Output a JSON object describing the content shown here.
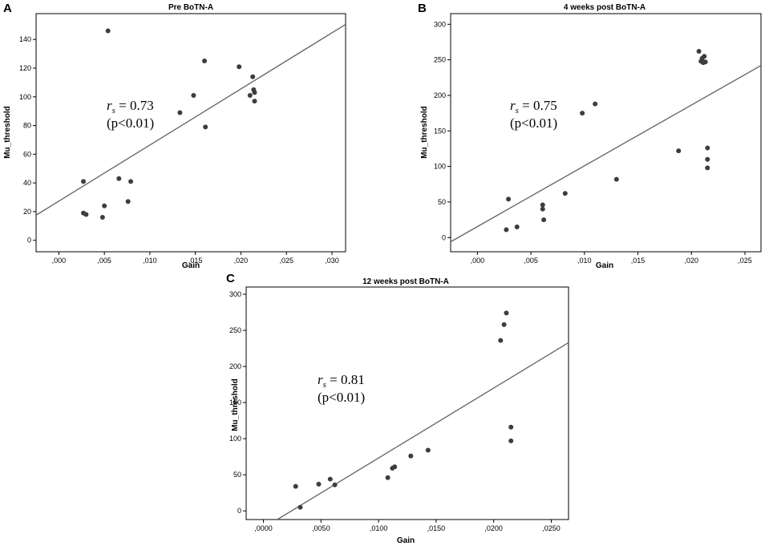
{
  "chart_data": [
    {
      "type": "scatter",
      "panel_label": "A",
      "title": "Pre BoTN-A",
      "xlabel": "Gain",
      "ylabel": "Mu_threshold",
      "xlim": [
        -0.0025,
        0.0315
      ],
      "ylim": [
        -8,
        158
      ],
      "xticks": [
        0,
        0.005,
        0.01,
        0.015,
        0.02,
        0.025,
        0.03
      ],
      "xtick_labels": [
        ",000",
        ",005",
        ",010",
        ",015",
        ",020",
        ",025",
        ",030"
      ],
      "yticks": [
        0,
        20,
        40,
        60,
        80,
        100,
        120,
        140
      ],
      "ytick_labels": [
        "0",
        "20",
        "40",
        "60",
        "80",
        "100",
        "120",
        "140"
      ],
      "points": [
        [
          0.0027,
          41
        ],
        [
          0.0027,
          19
        ],
        [
          0.003,
          18
        ],
        [
          0.0048,
          16
        ],
        [
          0.005,
          24
        ],
        [
          0.0054,
          146
        ],
        [
          0.0066,
          43
        ],
        [
          0.0076,
          27
        ],
        [
          0.0079,
          41
        ],
        [
          0.0133,
          89
        ],
        [
          0.0148,
          101
        ],
        [
          0.016,
          125
        ],
        [
          0.0161,
          79
        ],
        [
          0.0198,
          121
        ],
        [
          0.021,
          101
        ],
        [
          0.0213,
          114
        ],
        [
          0.0214,
          105
        ],
        [
          0.0215,
          103
        ],
        [
          0.0215,
          97
        ]
      ],
      "fit_line": [
        [
          -0.0025,
          17.5
        ],
        [
          0.0315,
          150.5
        ]
      ],
      "annotation": {
        "rs_symbol": "r",
        "rs_sub": "s",
        "rs_value": " = 0.73",
        "p_text": "(p<0.01)"
      }
    },
    {
      "type": "scatter",
      "panel_label": "B",
      "title": "4 weeks post BoTN-A",
      "xlabel": "Gain",
      "ylabel": "Mu_threshold",
      "xlim": [
        -0.0025,
        0.0265
      ],
      "ylim": [
        -20,
        315
      ],
      "xticks": [
        0,
        0.005,
        0.01,
        0.015,
        0.02,
        0.025
      ],
      "xtick_labels": [
        ",000",
        ",005",
        ",010",
        ",015",
        ",020",
        ",025"
      ],
      "yticks": [
        0,
        50,
        100,
        150,
        200,
        250,
        300
      ],
      "ytick_labels": [
        "0",
        "50",
        "100",
        "150",
        "200",
        "250",
        "300"
      ],
      "points": [
        [
          0.0027,
          11
        ],
        [
          0.0029,
          54
        ],
        [
          0.0037,
          15
        ],
        [
          0.0061,
          46
        ],
        [
          0.0061,
          40
        ],
        [
          0.0062,
          25
        ],
        [
          0.0082,
          62
        ],
        [
          0.0098,
          175
        ],
        [
          0.011,
          188
        ],
        [
          0.013,
          82
        ],
        [
          0.0188,
          122
        ],
        [
          0.0207,
          262
        ],
        [
          0.0209,
          248
        ],
        [
          0.021,
          252
        ],
        [
          0.0211,
          246
        ],
        [
          0.0212,
          255
        ],
        [
          0.0213,
          247
        ],
        [
          0.0215,
          126
        ],
        [
          0.0215,
          110
        ],
        [
          0.0215,
          98
        ]
      ],
      "fit_line": [
        [
          -0.0025,
          -6
        ],
        [
          0.0265,
          242
        ]
      ],
      "annotation": {
        "rs_symbol": "r",
        "rs_sub": "s",
        "rs_value": " = 0.75",
        "p_text": "(p<0.01)"
      }
    },
    {
      "type": "scatter",
      "panel_label": "C",
      "title": "12 weeks post BoTN-A",
      "xlabel": "Gain",
      "ylabel": "Mu_threshold",
      "xlim": [
        -0.0015,
        0.0265
      ],
      "ylim": [
        -12,
        310
      ],
      "xticks": [
        0,
        0.005,
        0.01,
        0.015,
        0.02,
        0.025
      ],
      "xtick_labels": [
        ",0000",
        ",0050",
        ",0100",
        ",0150",
        ",0200",
        ",0250"
      ],
      "yticks": [
        0,
        50,
        100,
        150,
        200,
        250,
        300
      ],
      "ytick_labels": [
        "0",
        "50",
        "100",
        "150",
        "200",
        "250",
        "300"
      ],
      "points": [
        [
          0.0028,
          34
        ],
        [
          0.0032,
          5
        ],
        [
          0.0048,
          37
        ],
        [
          0.0058,
          44
        ],
        [
          0.0062,
          36
        ],
        [
          0.0108,
          46
        ],
        [
          0.0112,
          59
        ],
        [
          0.0114,
          61
        ],
        [
          0.0128,
          76
        ],
        [
          0.0143,
          84
        ],
        [
          0.0206,
          236
        ],
        [
          0.0209,
          258
        ],
        [
          0.0211,
          274
        ],
        [
          0.0215,
          116
        ],
        [
          0.0215,
          97
        ]
      ],
      "fit_line": [
        [
          0.0012,
          -12
        ],
        [
          0.0265,
          233
        ]
      ],
      "annotation": {
        "rs_symbol": "r",
        "rs_sub": "s",
        "rs_value": " = 0.81",
        "p_text": "(p<0.01)"
      }
    }
  ]
}
